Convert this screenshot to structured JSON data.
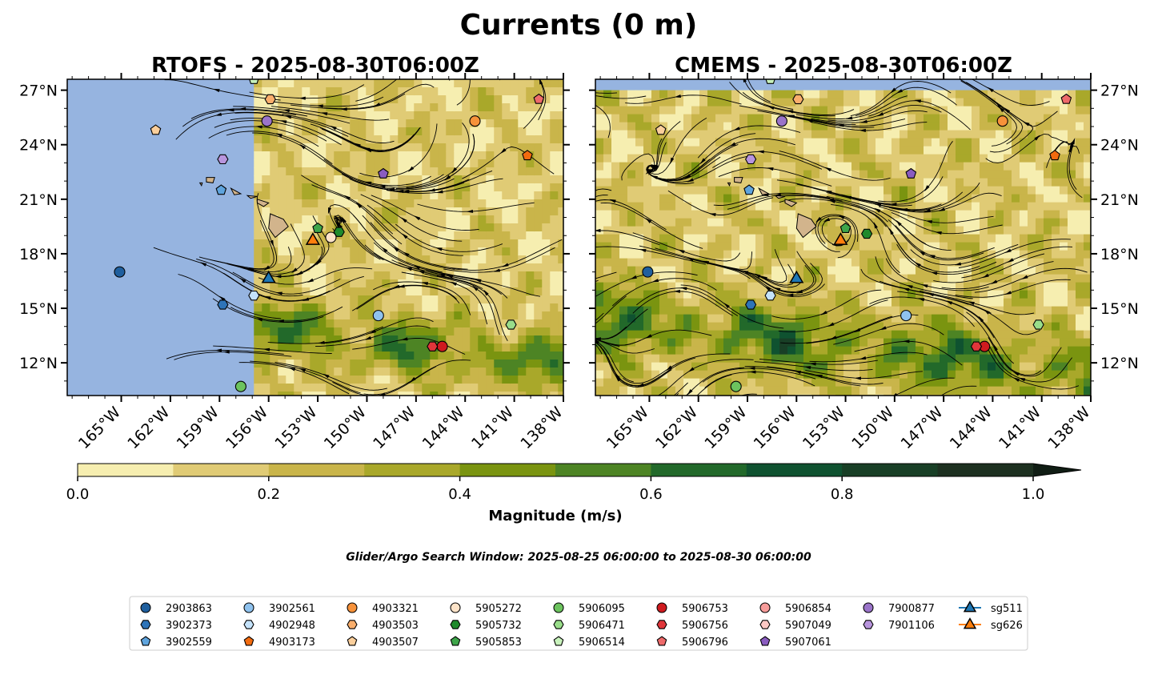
{
  "figure": {
    "title": "Currents (0 m)",
    "search_window": "Glider/Argo Search Window: 2025-08-25 06:00:00 to 2025-08-30 06:00:00"
  },
  "colors": {
    "land": "#d2b48c",
    "ocean_mask": "#96b4e0",
    "field_low": "#f6eeb0",
    "field_mid": "#9da421",
    "field_high": "#17301c"
  },
  "chart_data": [
    {
      "type": "heatmap",
      "title": "RTOFS - 2025-08-30T06:00Z",
      "xlabel": "",
      "ylabel": "",
      "xlim": [
        -168.3,
        -138
      ],
      "ylim": [
        10.2,
        27.6
      ],
      "x_ticks": [
        -165,
        -162,
        -159,
        -156,
        -153,
        -150,
        -147,
        -144,
        -141,
        -138
      ],
      "x_tick_labels": [
        "165°W",
        "162°W",
        "159°W",
        "156°W",
        "153°W",
        "150°W",
        "147°W",
        "144°W",
        "141°W",
        "138°W"
      ],
      "y_ticks": [
        12,
        15,
        18,
        21,
        24,
        27
      ],
      "y_tick_labels": [
        "12°N",
        "15°N",
        "18°N",
        "21°N",
        "24°N",
        "27°N"
      ],
      "data_extent_lon": [
        -156.9,
        -138
      ],
      "streamlines": true,
      "floats": [
        {
          "id": "2903863",
          "lon": -165.1,
          "lat": 17.0
        },
        {
          "id": "3902373",
          "lon": -158.8,
          "lat": 15.2
        },
        {
          "id": "3902559",
          "lon": -158.9,
          "lat": 21.5
        },
        {
          "id": "3902561",
          "lon": -149.3,
          "lat": 14.6
        },
        {
          "id": "4902948",
          "lon": -156.9,
          "lat": 15.7
        },
        {
          "id": "4903173",
          "lon": -140.2,
          "lat": 23.4
        },
        {
          "id": "4903321",
          "lon": -143.4,
          "lat": 25.3
        },
        {
          "id": "4903503",
          "lon": -155.9,
          "lat": 26.5
        },
        {
          "id": "4903507",
          "lon": -162.9,
          "lat": 24.8
        },
        {
          "id": "5905272",
          "lon": -152.2,
          "lat": 18.9
        },
        {
          "id": "5905732",
          "lon": -151.7,
          "lat": 19.2
        },
        {
          "id": "5905853",
          "lon": -153.0,
          "lat": 19.4
        },
        {
          "id": "5906095",
          "lon": -157.7,
          "lat": 10.7
        },
        {
          "id": "5906471",
          "lon": -141.2,
          "lat": 14.1
        },
        {
          "id": "5906514",
          "lon": -156.9,
          "lat": 27.6
        },
        {
          "id": "5906753",
          "lon": -145.4,
          "lat": 12.9
        },
        {
          "id": "5906756",
          "lon": -146.0,
          "lat": 12.9
        },
        {
          "id": "5906796",
          "lon": -139.5,
          "lat": 26.5
        },
        {
          "id": "7900877",
          "lon": -156.1,
          "lat": 25.3
        },
        {
          "id": "7901106",
          "lon": -158.8,
          "lat": 23.2
        },
        {
          "id": "5907061",
          "lon": -149.0,
          "lat": 22.4
        }
      ],
      "gliders": [
        {
          "id": "sg511",
          "lon": -156.0,
          "lat": 16.7
        },
        {
          "id": "sg626",
          "lon": -153.3,
          "lat": 18.8
        }
      ]
    },
    {
      "type": "heatmap",
      "title": "CMEMS - 2025-08-30T06:00Z",
      "xlabel": "",
      "ylabel": "",
      "xlim": [
        -168.3,
        -138
      ],
      "ylim": [
        10.2,
        27.6
      ],
      "x_ticks": [
        -165,
        -162,
        -159,
        -156,
        -153,
        -150,
        -147,
        -144,
        -141,
        -138
      ],
      "x_tick_labels": [
        "165°W",
        "162°W",
        "159°W",
        "156°W",
        "153°W",
        "150°W",
        "147°W",
        "144°W",
        "141°W",
        "138°W"
      ],
      "y_ticks": [
        12,
        15,
        18,
        21,
        24,
        27
      ],
      "y_tick_labels": [
        "12°N",
        "15°N",
        "18°N",
        "21°N",
        "24°N",
        "27°N"
      ],
      "data_extent_lat": [
        10.2,
        27.0
      ],
      "streamlines": true,
      "floats": [
        {
          "id": "2903863",
          "lon": -165.1,
          "lat": 17.0
        },
        {
          "id": "3902373",
          "lon": -158.8,
          "lat": 15.2
        },
        {
          "id": "3902559",
          "lon": -158.9,
          "lat": 21.5
        },
        {
          "id": "3902561",
          "lon": -149.3,
          "lat": 14.6
        },
        {
          "id": "4902948",
          "lon": -157.6,
          "lat": 15.7
        },
        {
          "id": "4903173",
          "lon": -140.2,
          "lat": 23.4
        },
        {
          "id": "4903321",
          "lon": -143.4,
          "lat": 25.3
        },
        {
          "id": "4903503",
          "lon": -155.9,
          "lat": 26.5
        },
        {
          "id": "4903507",
          "lon": -164.3,
          "lat": 24.8
        },
        {
          "id": "5905732",
          "lon": -151.7,
          "lat": 19.1
        },
        {
          "id": "5905853",
          "lon": -153.0,
          "lat": 19.4
        },
        {
          "id": "5906095",
          "lon": -159.7,
          "lat": 10.7
        },
        {
          "id": "5906471",
          "lon": -141.2,
          "lat": 14.1
        },
        {
          "id": "5906514",
          "lon": -157.6,
          "lat": 27.6
        },
        {
          "id": "5906753",
          "lon": -144.5,
          "lat": 12.9
        },
        {
          "id": "5906756",
          "lon": -145.0,
          "lat": 12.9
        },
        {
          "id": "5906796",
          "lon": -139.5,
          "lat": 26.5
        },
        {
          "id": "7900877",
          "lon": -156.9,
          "lat": 25.3
        },
        {
          "id": "7901106",
          "lon": -158.8,
          "lat": 23.2
        },
        {
          "id": "5907061",
          "lon": -149.0,
          "lat": 22.4
        }
      ],
      "gliders": [
        {
          "id": "sg511",
          "lon": -156.0,
          "lat": 16.7
        },
        {
          "id": "sg626",
          "lon": -153.3,
          "lat": 18.8
        }
      ]
    }
  ],
  "colorbar": {
    "label": "Magnitude (m/s)",
    "min": 0.0,
    "max": 1.0,
    "extend": "max",
    "bounds": [
      0.0,
      0.1,
      0.2,
      0.3,
      0.4,
      0.5,
      0.6,
      0.7,
      0.8,
      0.9,
      1.0
    ],
    "colors": [
      "#f6eeb0",
      "#e0cb75",
      "#c9b54a",
      "#a9a82a",
      "#7a9410",
      "#4d8424",
      "#22692a",
      "#0f5230",
      "#183f26",
      "#1d3020"
    ],
    "extend_color": "#101d14",
    "tick_values": [
      0.0,
      0.2,
      0.4,
      0.6,
      0.8,
      1.0
    ],
    "tick_labels": [
      "0.0",
      "0.2",
      "0.4",
      "0.6",
      "0.8",
      "1.0"
    ]
  },
  "legend": {
    "columns": [
      [
        {
          "label": "2903863",
          "marker": "circle",
          "color": "#1f5f9e"
        },
        {
          "label": "3902373",
          "marker": "hexagon",
          "color": "#2e74b8"
        },
        {
          "label": "3902559",
          "marker": "pentagon",
          "color": "#5fa4dd"
        }
      ],
      [
        {
          "label": "3902561",
          "marker": "circle",
          "color": "#8fc2ee"
        },
        {
          "label": "4902948",
          "marker": "hexagon",
          "color": "#c4e2fa"
        },
        {
          "label": "4903173",
          "marker": "pentagon",
          "color": "#f26b0f"
        }
      ],
      [
        {
          "label": "4903321",
          "marker": "circle",
          "color": "#f7923a"
        },
        {
          "label": "4903503",
          "marker": "hexagon",
          "color": "#f9ae6c"
        },
        {
          "label": "4903507",
          "marker": "pentagon",
          "color": "#fbcf9c"
        }
      ],
      [
        {
          "label": "5905272",
          "marker": "circle",
          "color": "#fde3c8"
        },
        {
          "label": "5905732",
          "marker": "hexagon",
          "color": "#1f8a2c"
        },
        {
          "label": "5905853",
          "marker": "pentagon",
          "color": "#3ea54a"
        }
      ],
      [
        {
          "label": "5906095",
          "marker": "circle",
          "color": "#6cc35e"
        },
        {
          "label": "5906471",
          "marker": "hexagon",
          "color": "#99dd8a"
        },
        {
          "label": "5906514",
          "marker": "pentagon",
          "color": "#c8f2bc"
        }
      ],
      [
        {
          "label": "5906753",
          "marker": "circle",
          "color": "#cf1b1f"
        },
        {
          "label": "5906756",
          "marker": "hexagon",
          "color": "#e0363a"
        },
        {
          "label": "5906796",
          "marker": "pentagon",
          "color": "#ee6a6a"
        }
      ],
      [
        {
          "label": "5906854",
          "marker": "circle",
          "color": "#f79c9a"
        },
        {
          "label": "5907049",
          "marker": "hexagon",
          "color": "#fbc8c4"
        },
        {
          "label": "5907061",
          "marker": "pentagon",
          "color": "#8a5cc0"
        }
      ],
      [
        {
          "label": "7900877",
          "marker": "circle",
          "color": "#9a74c9"
        },
        {
          "label": "7901106",
          "marker": "hexagon",
          "color": "#b895dd"
        }
      ],
      [
        {
          "label": "sg511",
          "marker": "triangle",
          "color": "#1f77b4"
        },
        {
          "label": "sg626",
          "marker": "triangle",
          "color": "#ff7f0e"
        }
      ]
    ]
  }
}
